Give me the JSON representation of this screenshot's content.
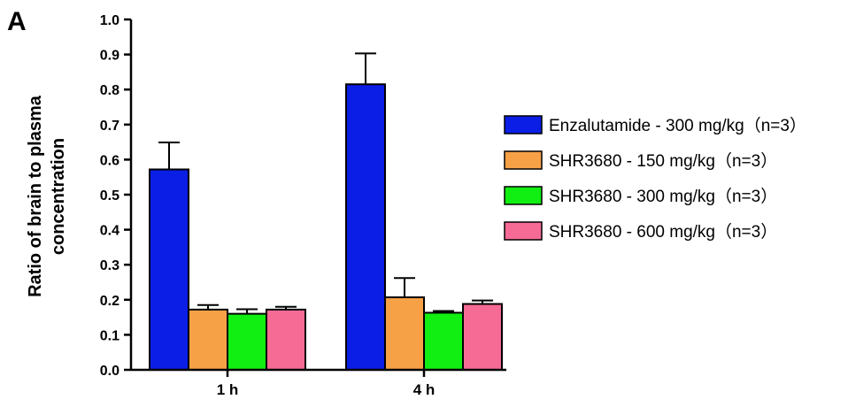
{
  "panel_label": "A",
  "chart_data": {
    "type": "bar",
    "title": "",
    "xlabel": "",
    "ylabel_lines": [
      "Ratio of brain to plasma",
      "concentration"
    ],
    "categories": [
      "1 h",
      "4 h"
    ],
    "ylim": [
      0,
      1.0
    ],
    "yticks": [
      "0.0",
      "0.1",
      "0.2",
      "0.3",
      "0.4",
      "0.5",
      "0.6",
      "0.7",
      "0.8",
      "0.9",
      "1.0"
    ],
    "legend_position": "right",
    "series": [
      {
        "name": "Enzalutamide - 300 mg/kg（n=3）",
        "color": "#0a1ee6",
        "values": [
          0.572,
          0.815
        ],
        "errors": [
          0.077,
          0.088
        ]
      },
      {
        "name": "SHR3680 - 150 mg/kg（n=3）",
        "color": "#f7a147",
        "values": [
          0.172,
          0.207
        ],
        "errors": [
          0.013,
          0.055
        ]
      },
      {
        "name": "SHR3680 - 300 mg/kg（n=3）",
        "color": "#11ee11",
        "values": [
          0.16,
          0.163
        ],
        "errors": [
          0.013,
          0.005
        ]
      },
      {
        "name": "SHR3680 - 600 mg/kg（n=3）",
        "color": "#f56b95",
        "values": [
          0.172,
          0.188
        ],
        "errors": [
          0.008,
          0.01
        ]
      }
    ]
  }
}
